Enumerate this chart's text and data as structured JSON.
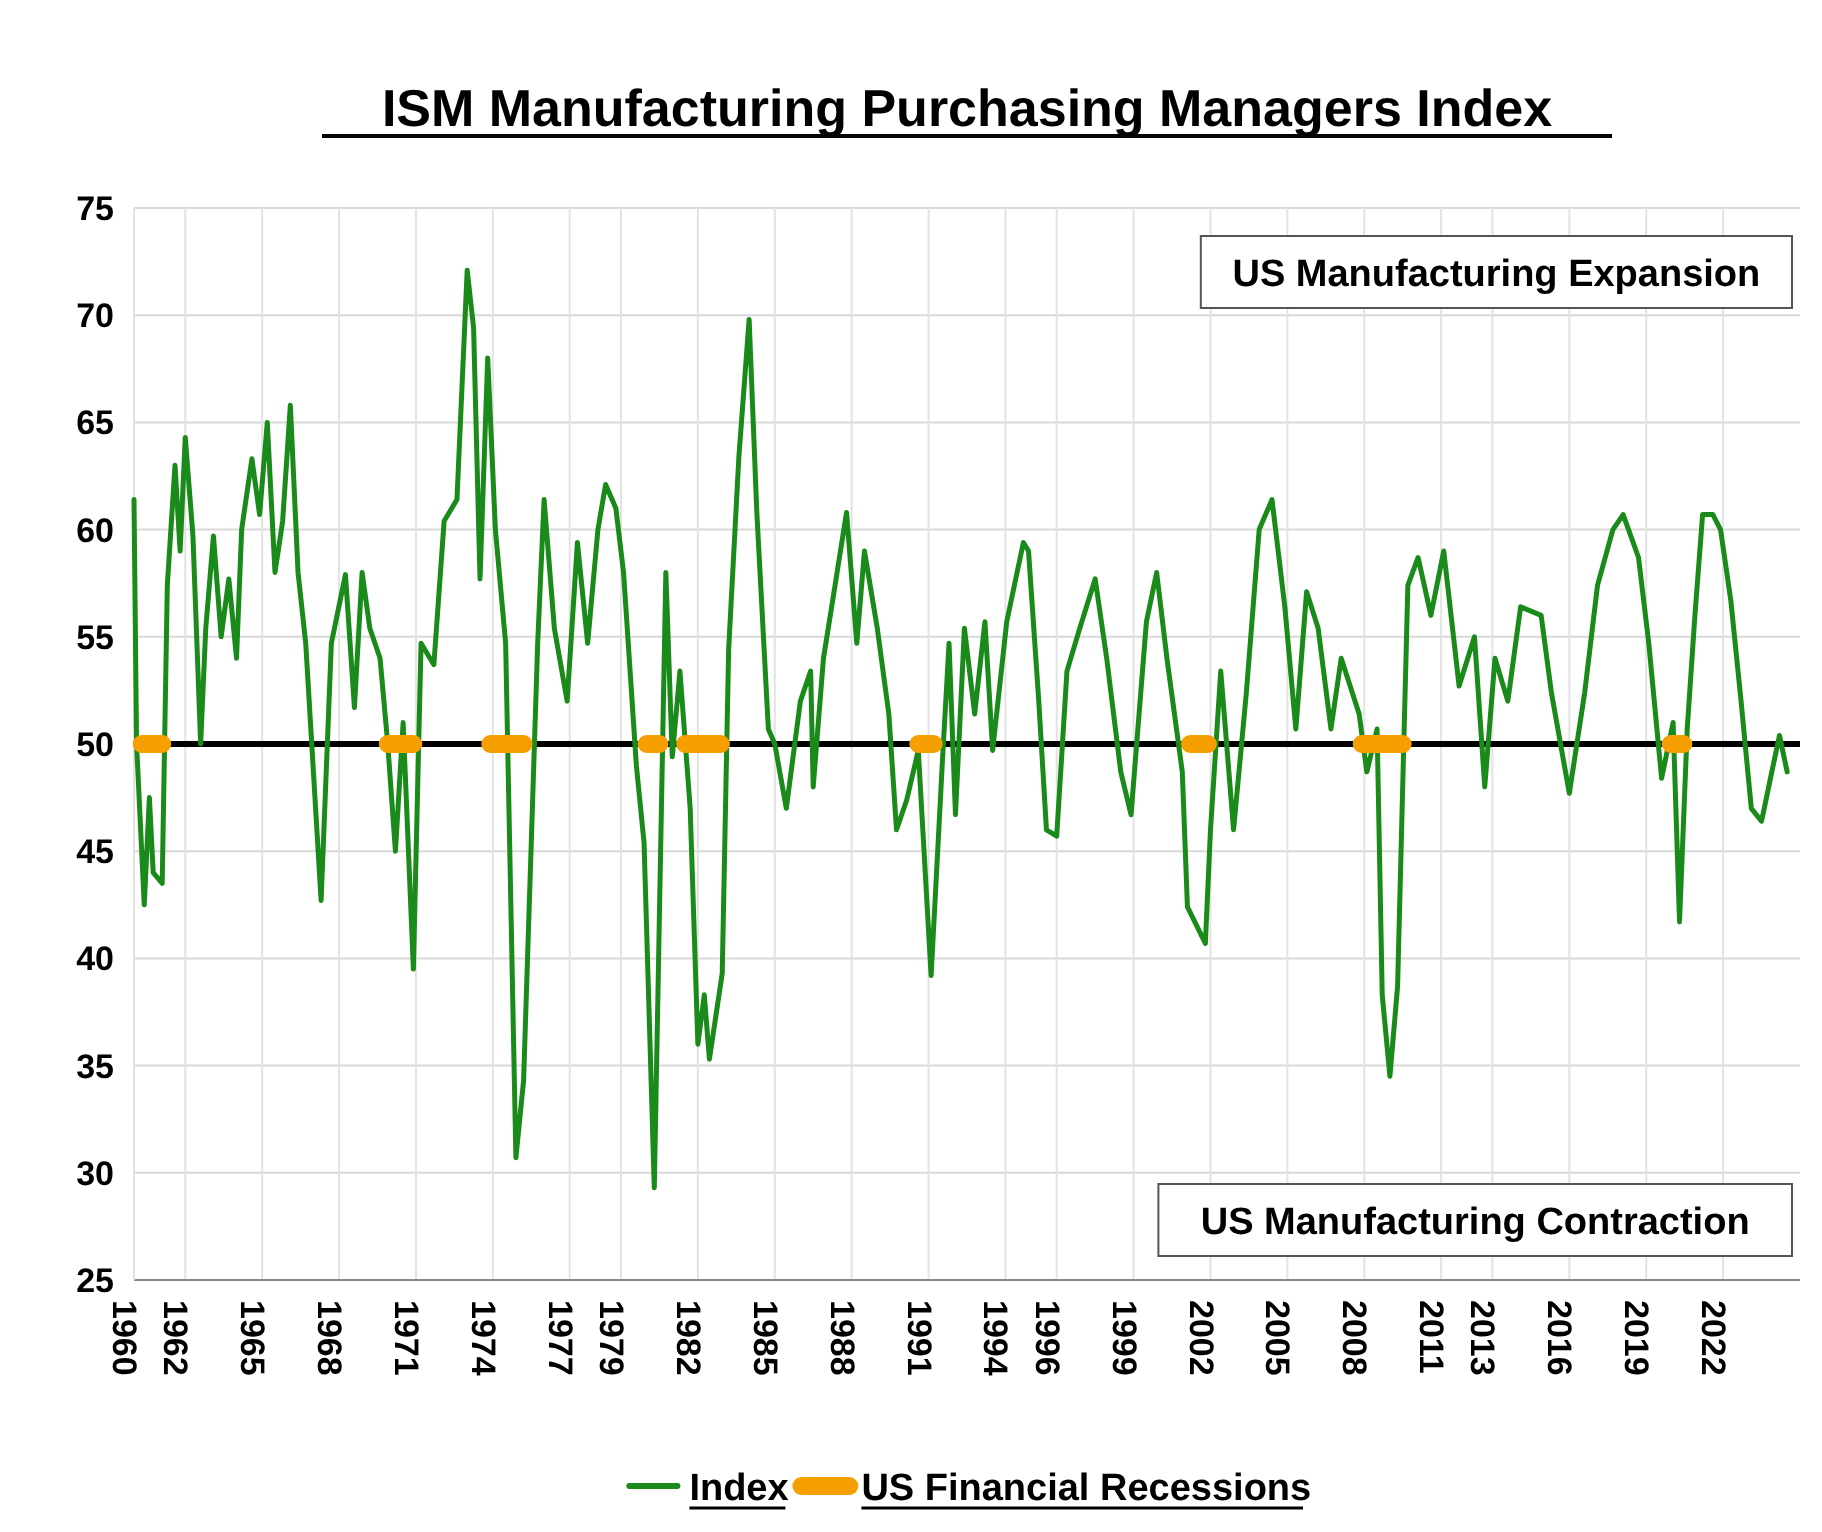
{
  "chart_data": {
    "type": "line",
    "title": "ISM Manufacturing Purchasing Managers Index",
    "xlim": [
      1960,
      2025
    ],
    "ylim": [
      25,
      75
    ],
    "yticks": [
      25,
      30,
      35,
      40,
      45,
      50,
      55,
      60,
      65,
      70,
      75
    ],
    "xticks": [
      {
        "value": 1960,
        "label": "1960"
      },
      {
        "value": 1962,
        "label": "1962"
      },
      {
        "value": 1965,
        "label": "1965"
      },
      {
        "value": 1968,
        "label": "1968"
      },
      {
        "value": 1971,
        "label": "1971"
      },
      {
        "value": 1974,
        "label": "1974"
      },
      {
        "value": 1977,
        "label": "1977"
      },
      {
        "value": 1979,
        "label": "1979"
      },
      {
        "value": 1982,
        "label": "1982"
      },
      {
        "value": 1985,
        "label": "1985"
      },
      {
        "value": 1988,
        "label": "1988"
      },
      {
        "value": 1991,
        "label": "1991"
      },
      {
        "value": 1994,
        "label": "1994"
      },
      {
        "value": 1996,
        "label": "1996"
      },
      {
        "value": 1999,
        "label": "1999"
      },
      {
        "value": 2002,
        "label": "2002"
      },
      {
        "value": 2005,
        "label": "2005"
      },
      {
        "value": 2008,
        "label": "2008"
      },
      {
        "value": 2011,
        "label": "2011"
      },
      {
        "value": 2013,
        "label": "2013"
      },
      {
        "value": 2016,
        "label": "2016"
      },
      {
        "value": 2019,
        "label": "2019"
      },
      {
        "value": 2022,
        "label": "2022"
      }
    ],
    "grid": true,
    "legend": "bottom",
    "ref_lines": [
      {
        "axis": "y",
        "value": 50,
        "color": "#000000"
      }
    ],
    "annotations": [
      "US Manufacturing Expansion",
      "US Manufacturing Contraction"
    ],
    "series": [
      {
        "name": "Index",
        "color": "#1a8a1a",
        "x": [
          1960.0,
          1960.1,
          1960.4,
          1960.6,
          1960.75,
          1961.1,
          1961.3,
          1961.6,
          1961.8,
          1962.0,
          1962.3,
          1962.6,
          1962.8,
          1963.1,
          1963.4,
          1963.7,
          1964.0,
          1964.2,
          1964.6,
          1964.9,
          1965.2,
          1965.5,
          1965.8,
          1966.1,
          1966.4,
          1966.7,
          1967.3,
          1967.7,
          1968.25,
          1968.6,
          1968.9,
          1969.2,
          1969.6,
          1969.9,
          1970.2,
          1970.5,
          1970.9,
          1971.2,
          1971.7,
          1972.1,
          1972.6,
          1973.0,
          1973.25,
          1973.5,
          1973.8,
          1974.1,
          1974.5,
          1974.9,
          1975.2,
          1975.5,
          1975.75,
          1976.0,
          1976.4,
          1976.9,
          1977.3,
          1977.7,
          1978.1,
          1978.4,
          1978.8,
          1979.1,
          1979.6,
          1979.9,
          1980.3,
          1980.75,
          1981.0,
          1981.3,
          1981.7,
          1982.0,
          1982.25,
          1982.45,
          1982.95,
          1983.2,
          1983.6,
          1984.0,
          1984.3,
          1984.75,
          1985.0,
          1985.45,
          1986.0,
          1986.4,
          1986.5,
          1986.9,
          1987.3,
          1987.8,
          1988.2,
          1988.5,
          1989.0,
          1989.45,
          1989.75,
          1990.15,
          1990.6,
          1991.1,
          1991.55,
          1991.8,
          1992.05,
          1992.4,
          1992.8,
          1993.2,
          1993.5,
          1994.05,
          1994.7,
          1994.9,
          1995.3,
          1995.6,
          1996.0,
          1996.4,
          1996.9,
          1997.5,
          1997.95,
          1998.5,
          1998.9,
          1999.5,
          1999.9,
          2000.3,
          2000.9,
          2001.1,
          2001.8,
          2002.0,
          2002.4,
          2002.9,
          2003.4,
          2003.9,
          2004.4,
          2004.9,
          2005.33,
          2005.75,
          2006.2,
          2006.7,
          2007.1,
          2007.8,
          2008.1,
          2008.5,
          2008.7,
          2009.0,
          2009.3,
          2009.7,
          2010.1,
          2010.6,
          2011.1,
          2011.7,
          2012.3,
          2012.7,
          2013.1,
          2013.6,
          2014.1,
          2014.9,
          2015.3,
          2016.0,
          2016.6,
          2017.1,
          2017.7,
          2018.1,
          2018.7,
          2019.1,
          2019.6,
          2020.05,
          2020.3,
          2020.6,
          2020.9,
          2021.2,
          2021.6,
          2021.9,
          2022.3,
          2022.7,
          2023.1,
          2023.5,
          2023.9,
          2024.2,
          2024.5
        ],
        "values": [
          61.4,
          50,
          42.5,
          47.5,
          44,
          43.5,
          57.4,
          63,
          59,
          64.3,
          59.7,
          50,
          55.4,
          59.7,
          55,
          57.7,
          54,
          60,
          63.3,
          60.7,
          65,
          58,
          60.4,
          65.8,
          58,
          54.7,
          42.7,
          54.7,
          57.9,
          51.7,
          58,
          55.4,
          54,
          50,
          45,
          51,
          39.5,
          54.7,
          53.7,
          60.4,
          61.4,
          72.1,
          69.4,
          57.7,
          68,
          60,
          54.7,
          30.7,
          34.3,
          45.4,
          54.7,
          61.4,
          55.4,
          52,
          59.4,
          54.7,
          60,
          62.1,
          61,
          58,
          49,
          45.4,
          29.3,
          58,
          49.4,
          53.4,
          47,
          36,
          38.3,
          35.3,
          39.3,
          54.4,
          63.4,
          69.8,
          60.8,
          50.7,
          50,
          47,
          52,
          53.4,
          48,
          54,
          57,
          60.8,
          54.7,
          59,
          55.4,
          51.4,
          46,
          47.4,
          49.7,
          39.2,
          49.4,
          54.7,
          46.7,
          55.4,
          51.4,
          55.7,
          49.7,
          55.7,
          59.4,
          59,
          52,
          46,
          45.7,
          53.4,
          55.4,
          57.7,
          54,
          48.7,
          46.7,
          55.7,
          58,
          54,
          48.7,
          42.4,
          40.7,
          46,
          53.4,
          46,
          52.4,
          60,
          61.4,
          56.4,
          50.7,
          57.1,
          55.4,
          50.7,
          54,
          51.4,
          48.7,
          50.7,
          38.3,
          34.5,
          38.7,
          57.4,
          58.7,
          56,
          59,
          52.7,
          55,
          48,
          54,
          52,
          56.4,
          56,
          52.4,
          47.7,
          52.4,
          57.4,
          60,
          60.7,
          58.7,
          54.7,
          48.4,
          51,
          41.7,
          50.7,
          56,
          60.7,
          60.7,
          60,
          56.7,
          52,
          47,
          46.4,
          48.7,
          50.4,
          48.7
        ]
      },
      {
        "name": "US Financial Recessions",
        "color": "#f5a000",
        "x": [
          1960.3,
          1961.1,
          1961.2,
          1969.9,
          1970.9,
          1971.0,
          1973.9,
          1975.2,
          1975.3,
          1980.0,
          1980.5,
          1980.6,
          1981.5,
          1982.9,
          1983.0,
          1990.6,
          1991.2,
          1991.3,
          2001.2,
          2001.9,
          2002.0,
          2007.9,
          2009.5,
          2009.6,
          2019.95,
          2020.45
        ],
        "values": [
          50,
          50,
          null,
          50,
          50,
          null,
          50,
          50,
          null,
          50,
          50,
          null,
          50,
          50,
          null,
          50,
          50,
          null,
          50,
          50,
          null,
          50,
          50,
          null,
          50,
          50
        ]
      }
    ]
  }
}
